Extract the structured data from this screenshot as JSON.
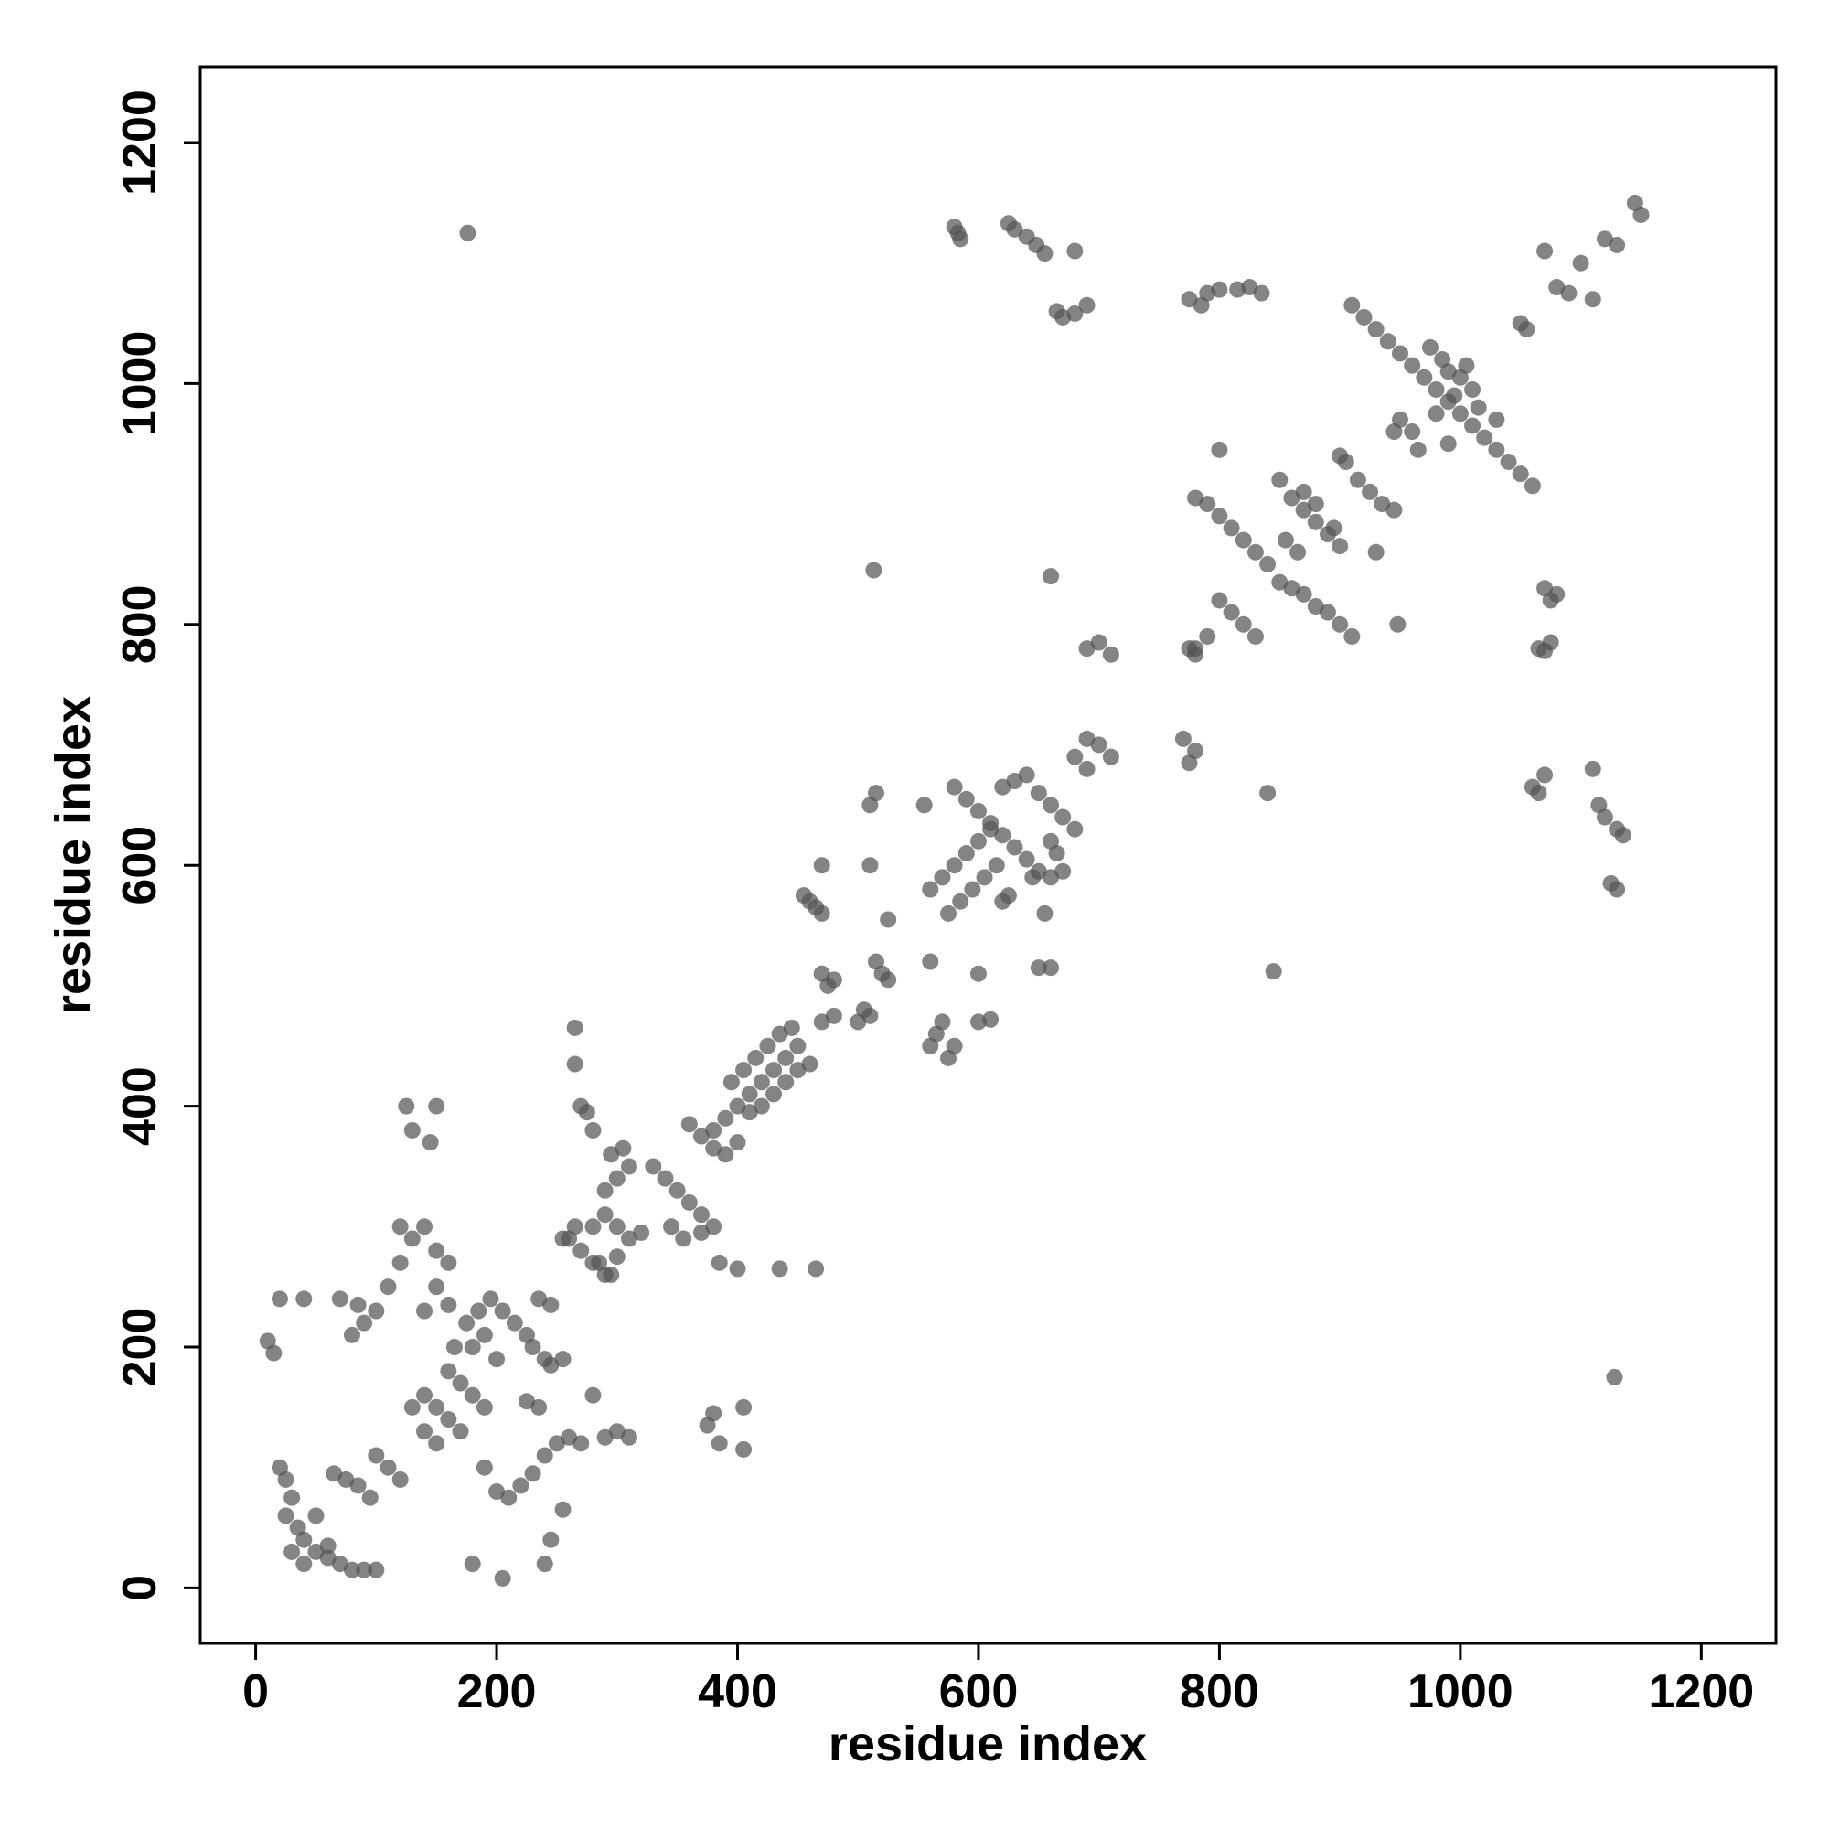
{
  "chart_data": {
    "type": "scatter",
    "x_label": "residue index",
    "y_label": "residue index",
    "xlim": [
      -46,
      1262
    ],
    "ylim": [
      -46,
      1263
    ],
    "xticks": [
      0,
      200,
      400,
      600,
      800,
      1000,
      1200
    ],
    "yticks": [
      0,
      200,
      400,
      600,
      800,
      1000,
      1200
    ],
    "color": "#555555",
    "x": [
      176,
      1128,
      513,
      660,
      845,
      840,
      580,
      583,
      585,
      625,
      630,
      640,
      648,
      655,
      680,
      665,
      670,
      680,
      690,
      775,
      790,
      785,
      800,
      825,
      835,
      815,
      1050,
      1055,
      1070,
      1080,
      1090,
      1100,
      1110,
      1120,
      1130,
      1145,
      1150,
      910,
      920,
      930,
      940,
      950,
      960,
      970,
      980,
      990,
      1000,
      1010,
      1020,
      1030,
      1040,
      1050,
      1060,
      990,
      1000,
      1010,
      1005,
      985,
      975,
      995,
      1015,
      1030,
      980,
      960,
      965,
      990,
      945,
      950,
      800,
      900,
      905,
      780,
      790,
      800,
      810,
      820,
      830,
      840,
      850,
      860,
      870,
      880,
      890,
      900,
      870,
      880,
      895,
      915,
      925,
      935,
      945,
      930,
      800,
      810,
      820,
      830,
      790,
      780,
      850,
      860,
      870,
      880,
      890,
      900,
      910,
      948,
      855,
      865,
      1070,
      1075,
      1080,
      1065,
      1075,
      1070,
      1060,
      1065,
      1070,
      1110,
      1115,
      1120,
      1130,
      1135,
      1125,
      1130,
      690,
      700,
      710,
      775,
      780,
      770,
      780,
      775,
      690,
      700,
      710,
      580,
      590,
      600,
      610,
      620,
      630,
      640,
      650,
      560,
      570,
      580,
      590,
      600,
      610,
      575,
      585,
      595,
      605,
      615,
      625,
      620,
      620,
      630,
      640,
      650,
      660,
      670,
      680,
      660,
      665,
      670,
      660,
      645,
      655,
      690,
      680,
      650,
      660,
      560,
      600,
      600,
      610,
      555,
      560,
      565,
      570,
      575,
      580,
      510,
      515,
      525,
      510,
      515,
      520,
      525,
      500,
      505,
      510,
      460,
      465,
      470,
      455,
      470,
      470,
      475,
      480,
      470,
      480,
      400,
      410,
      420,
      430,
      440,
      450,
      390,
      380,
      395,
      405,
      415,
      425,
      435,
      445,
      410,
      420,
      430,
      440,
      450,
      460,
      360,
      370,
      380,
      390,
      400,
      330,
      340,
      350,
      360,
      370,
      345,
      355,
      370,
      380,
      290,
      300,
      310,
      295,
      305,
      280,
      290,
      300,
      310,
      320,
      285,
      295,
      300,
      260,
      270,
      280,
      290,
      265,
      255,
      265,
      265,
      270,
      280,
      275,
      385,
      400,
      435,
      465,
      405,
      380,
      375,
      385,
      405,
      225,
      235,
      240,
      245,
      255,
      230,
      20,
      40,
      10,
      15,
      20,
      25,
      30,
      25,
      35,
      40,
      50,
      60,
      70,
      80,
      90,
      100,
      30,
      40,
      60,
      50,
      65,
      75,
      85,
      95,
      100,
      110,
      120,
      80,
      90,
      100,
      110,
      120,
      130,
      140,
      150,
      160,
      120,
      125,
      150,
      145,
      130,
      140,
      150,
      160,
      170,
      130,
      140,
      150,
      160,
      170,
      180,
      190,
      165,
      175,
      185,
      195,
      205,
      215,
      225,
      235,
      245,
      180,
      190,
      200,
      190,
      200,
      210,
      220,
      230,
      240,
      250,
      260,
      270,
      280,
      290,
      300,
      310,
      180,
      205,
      240,
      245,
      255,
      70,
      85,
      140,
      150,
      160
    ],
    "values": [
      1125,
      175,
      845,
      840,
      512,
      660,
      1130,
      1125,
      1120,
      1133,
      1128,
      1122,
      1115,
      1108,
      1110,
      1060,
      1055,
      1058,
      1065,
      1070,
      1075,
      1065,
      1078,
      1080,
      1075,
      1078,
      1050,
      1045,
      1110,
      1080,
      1075,
      1100,
      1070,
      1120,
      1115,
      1150,
      1140,
      1065,
      1055,
      1045,
      1035,
      1025,
      1015,
      1005,
      995,
      985,
      975,
      965,
      955,
      945,
      935,
      925,
      915,
      1010,
      1005,
      995,
      1015,
      1020,
      1030,
      990,
      980,
      970,
      975,
      960,
      945,
      950,
      960,
      970,
      945,
      940,
      935,
      905,
      900,
      890,
      880,
      870,
      860,
      850,
      920,
      905,
      895,
      885,
      875,
      865,
      910,
      900,
      880,
      920,
      910,
      900,
      895,
      860,
      820,
      810,
      800,
      790,
      790,
      780,
      835,
      830,
      825,
      815,
      810,
      800,
      790,
      800,
      870,
      860,
      830,
      820,
      825,
      780,
      785,
      778,
      665,
      660,
      675,
      680,
      650,
      640,
      630,
      625,
      585,
      580,
      780,
      785,
      775,
      780,
      775,
      705,
      695,
      685,
      705,
      700,
      690,
      665,
      655,
      645,
      635,
      625,
      615,
      605,
      595,
      580,
      590,
      600,
      610,
      620,
      630,
      560,
      570,
      580,
      590,
      600,
      575,
      570,
      665,
      670,
      675,
      660,
      650,
      640,
      630,
      620,
      610,
      595,
      590,
      590,
      560,
      680,
      690,
      515,
      515,
      520,
      510,
      470,
      472,
      650,
      450,
      460,
      470,
      440,
      450,
      650,
      660,
      555,
      600,
      520,
      510,
      505,
      470,
      480,
      475,
      570,
      565,
      560,
      575,
      600,
      510,
      500,
      505,
      470,
      475,
      400,
      410,
      420,
      430,
      440,
      450,
      390,
      380,
      420,
      430,
      440,
      450,
      460,
      465,
      395,
      400,
      410,
      420,
      430,
      435,
      385,
      375,
      365,
      360,
      370,
      350,
      340,
      330,
      320,
      310,
      300,
      290,
      295,
      300,
      330,
      340,
      350,
      360,
      365,
      300,
      310,
      300,
      290,
      295,
      270,
      260,
      275,
      290,
      280,
      270,
      260,
      300,
      290,
      465,
      435,
      400,
      380,
      395,
      270,
      265,
      265,
      265,
      150,
      145,
      135,
      120,
      115,
      155,
      150,
      190,
      185,
      190,
      200,
      240,
      240,
      205,
      195,
      100,
      90,
      75,
      60,
      50,
      40,
      30,
      25,
      20,
      15,
      15,
      15,
      30,
      20,
      35,
      60,
      95,
      90,
      85,
      75,
      110,
      100,
      90,
      210,
      220,
      230,
      250,
      270,
      290,
      300,
      280,
      270,
      300,
      400,
      400,
      370,
      380,
      160,
      150,
      140,
      130,
      150,
      130,
      120,
      180,
      170,
      160,
      150,
      200,
      220,
      230,
      240,
      230,
      220,
      210,
      240,
      235,
      200,
      210,
      190,
      100,
      80,
      75,
      85,
      95,
      110,
      120,
      125,
      120,
      160,
      125,
      130,
      125,
      20,
      8,
      20,
      40,
      65,
      240,
      235,
      230,
      250,
      235
    ]
  }
}
